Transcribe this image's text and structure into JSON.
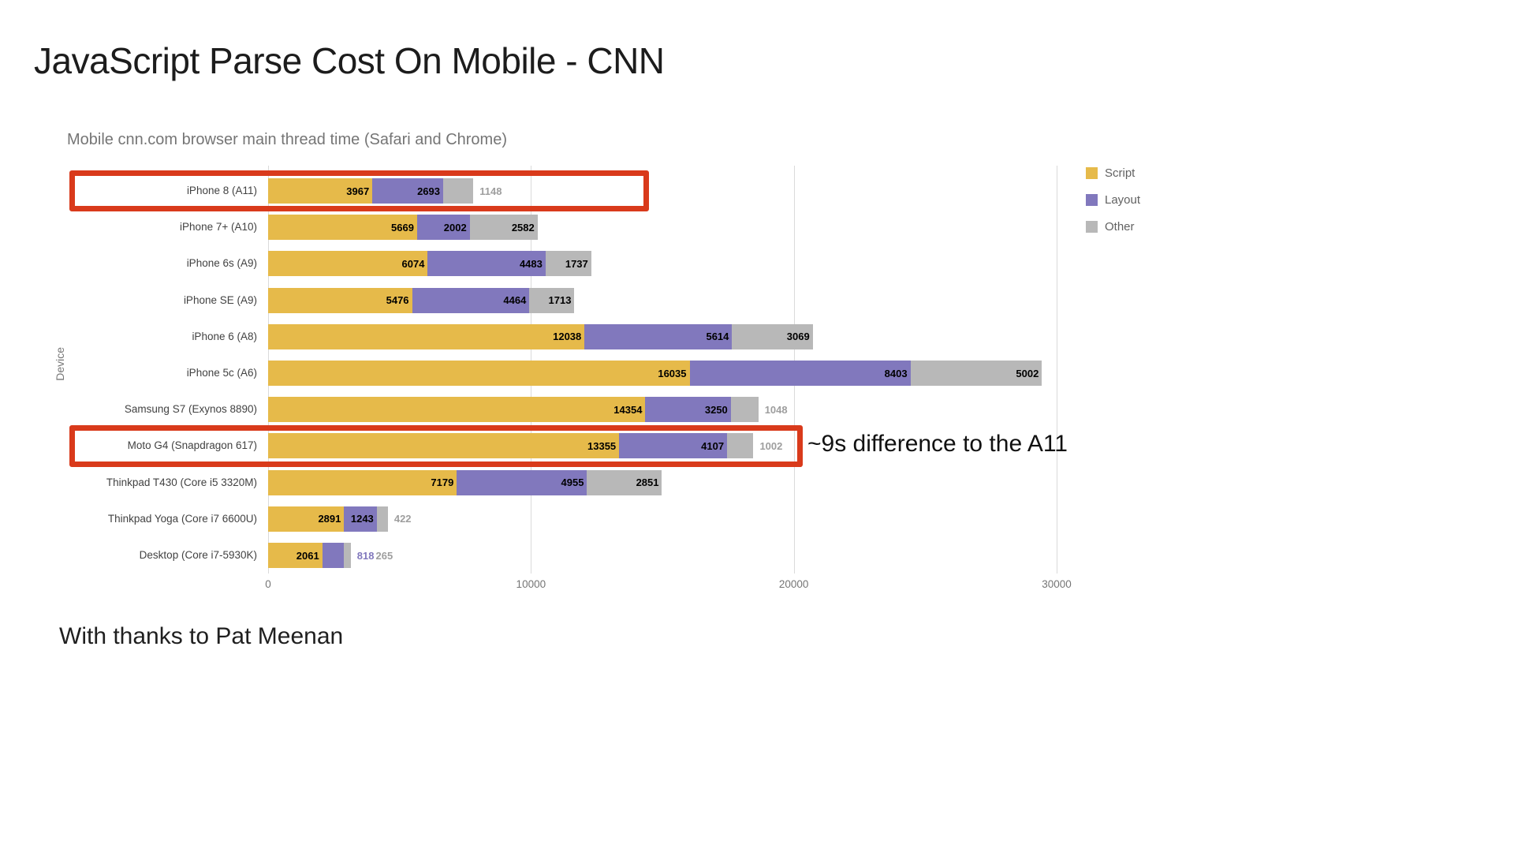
{
  "page": {
    "title": "JavaScript Parse Cost On Mobile - CNN",
    "footer": "With thanks to Pat Meenan",
    "annotation": "~9s difference to the A11"
  },
  "chart_data": {
    "type": "bar",
    "orientation": "horizontal",
    "stacked": true,
    "subtitle": "Mobile cnn.com browser main thread time (Safari and Chrome)",
    "ylabel": "Device",
    "xlim": [
      0,
      33600
    ],
    "xticks": [
      0,
      10000,
      20000,
      30000
    ],
    "grid": true,
    "legend_position": "top-right",
    "categories": [
      "iPhone 8 (A11)",
      "iPhone 7+ (A10)",
      "iPhone 6s (A9)",
      "iPhone SE (A9)",
      "iPhone 6 (A8)",
      "iPhone 5c (A6)",
      "Samsung S7 (Exynos 8890)",
      "Moto G4 (Snapdragon 617)",
      "Thinkpad T430 (Core i5 3320M)",
      "Thinkpad Yoga (Core i7 6600U)",
      "Desktop (Core i7-5930K)"
    ],
    "series": [
      {
        "name": "Script",
        "color": "#e6ba4a",
        "values": [
          3967,
          5669,
          6074,
          5476,
          12038,
          16035,
          14354,
          13355,
          7179,
          2891,
          2061
        ]
      },
      {
        "name": "Layout",
        "color": "#8178bd",
        "values": [
          2693,
          2002,
          4483,
          4464,
          5614,
          8403,
          3250,
          4107,
          4955,
          1243,
          818
        ]
      },
      {
        "name": "Other",
        "color": "#b8b8b8",
        "values": [
          1148,
          2582,
          1737,
          1713,
          3069,
          5002,
          1048,
          1002,
          2851,
          422,
          265
        ]
      }
    ],
    "outside_label_colors": {
      "Script": "#e6ba4a",
      "Layout": "#8178bd",
      "Other": "#9e9e9e"
    },
    "highlights": [
      {
        "category": "iPhone 8 (A11)",
        "to_value": 14500,
        "color": "#d93a1b"
      },
      {
        "category": "Moto G4 (Snapdragon 617)",
        "to_value": 20350,
        "color": "#d93a1b"
      }
    ]
  }
}
